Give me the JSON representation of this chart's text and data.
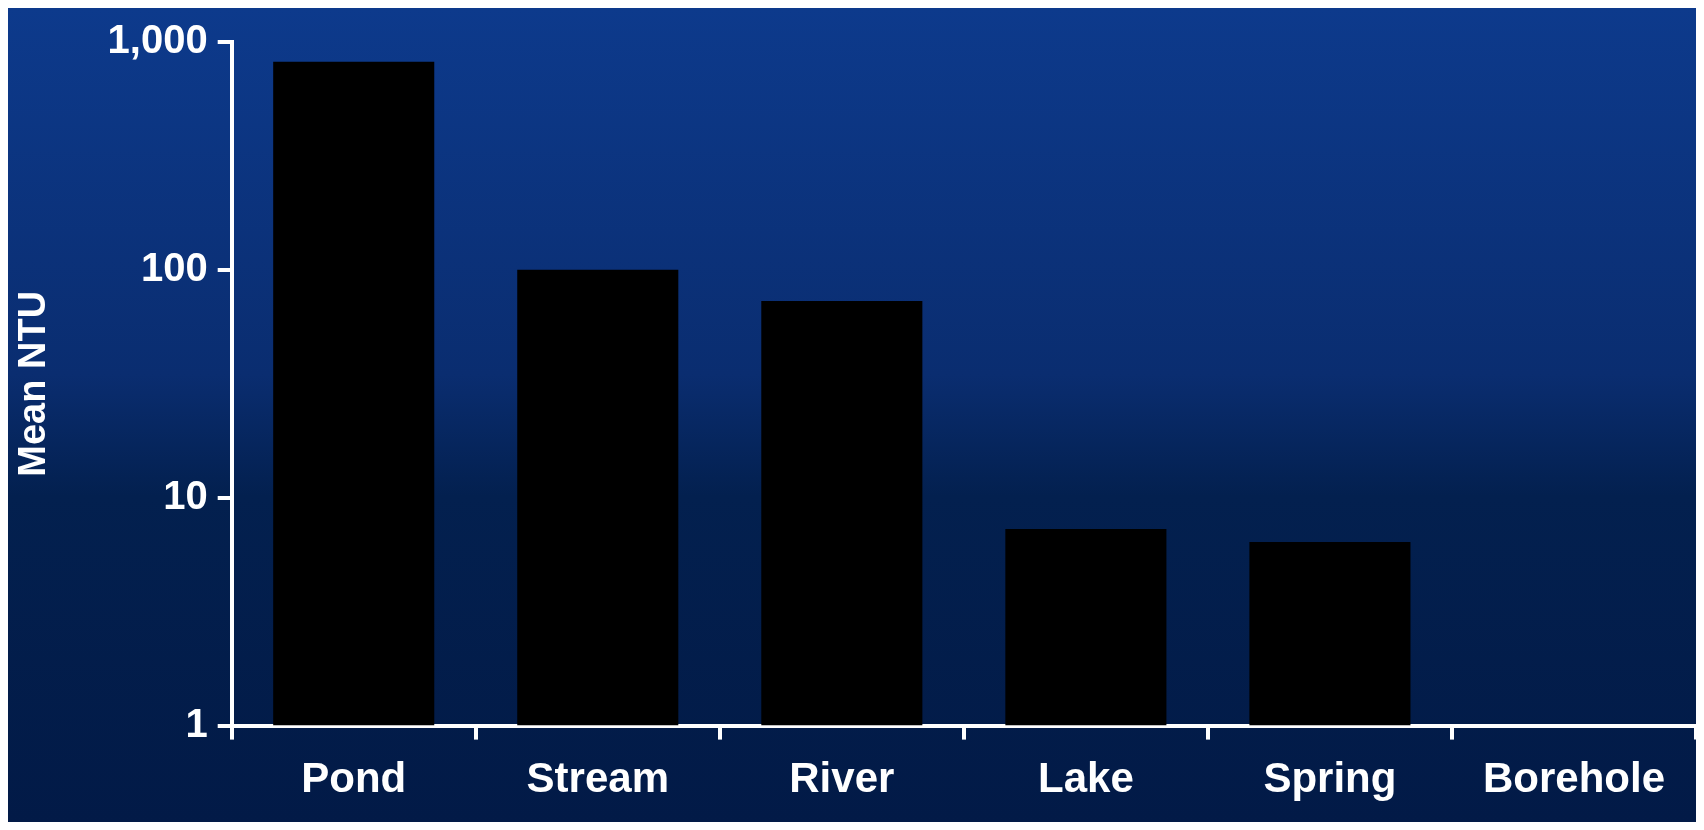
{
  "chart_data": {
    "type": "bar",
    "ylabel": "Mean NTU",
    "categories": [
      "Pond",
      "Stream",
      "River",
      "Lake",
      "Spring",
      "Borehole"
    ],
    "values": [
      820,
      100,
      73,
      7.3,
      6.4,
      null
    ],
    "color": "#000000",
    "log": true,
    "ylim": [
      1,
      1000
    ],
    "yticks": [
      1,
      10,
      100,
      {
        "value": 1000,
        "label": "1,000"
      }
    ],
    "grid": false,
    "legend": false
  }
}
